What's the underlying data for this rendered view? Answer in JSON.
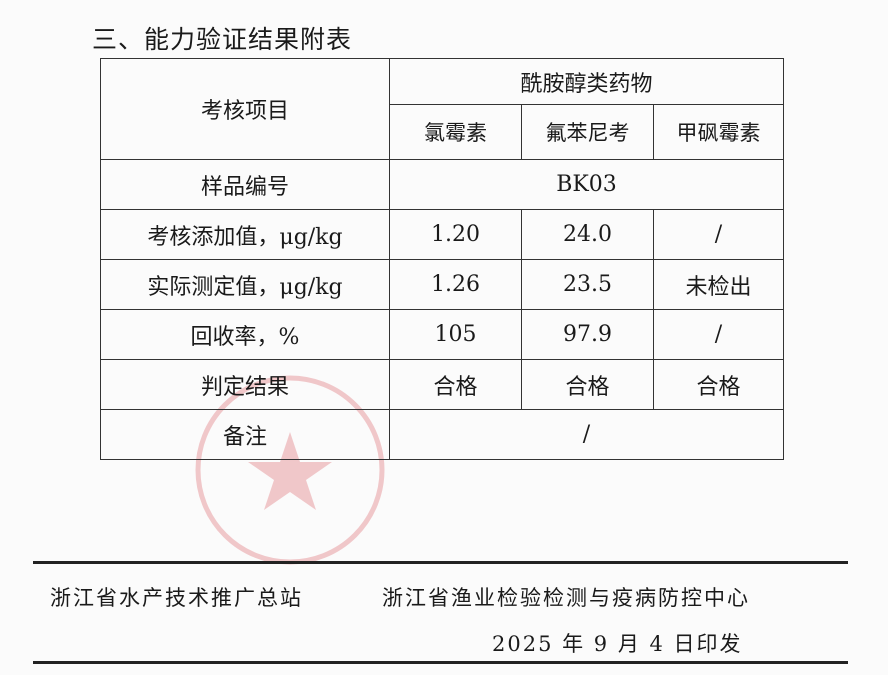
{
  "title": "三、能力验证结果附表",
  "table": {
    "header_item": "考核项目",
    "group": "酰胺醇类药物",
    "drugs": [
      "氯霉素",
      "氟苯尼考",
      "甲砜霉素"
    ],
    "sample_label": "样品编号",
    "sample_value": "BK03",
    "rows": [
      {
        "label": "考核添加值，μg/kg",
        "values": [
          "1.20",
          "24.0",
          "/"
        ]
      },
      {
        "label": "实际测定值，μg/kg",
        "values": [
          "1.26",
          "23.5",
          "未检出"
        ]
      },
      {
        "label": "回收率，%",
        "values": [
          "105",
          "97.9",
          "/"
        ]
      },
      {
        "label": "判定结果",
        "values": [
          "合格",
          "合格",
          "合格"
        ]
      }
    ],
    "remark_label": "备注",
    "remark_value": "/"
  },
  "footer": {
    "org1": "浙江省水产技术推广总站",
    "org2": "浙江省渔业检验检测与疫病防控中心",
    "date": "2025 年 9 月 4 日印发"
  },
  "stamp_color": "#d0303a"
}
